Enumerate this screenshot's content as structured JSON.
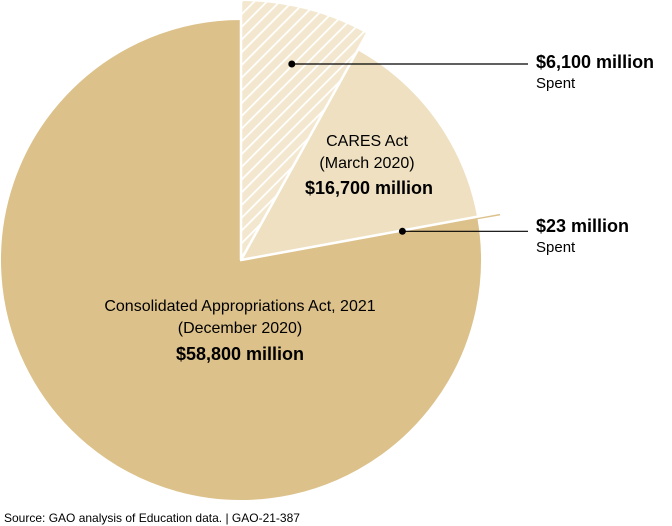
{
  "chart_data": {
    "type": "pie",
    "unit": "$ million",
    "slices": [
      {
        "name": "Consolidated Appropriations Act, 2021",
        "date": "(December 2020)",
        "value": 58800,
        "value_label": "$58,800 million",
        "color": "#dcc18a",
        "spent": {
          "value": 23,
          "label": "$23 million",
          "sublabel": "Spent"
        }
      },
      {
        "name": "CARES Act",
        "date": "(March 2020)",
        "value": 16700,
        "value_label": "$16,700 million",
        "color": "#eee0c0",
        "spent": {
          "value": 6100,
          "label": "$6,100 million",
          "sublabel": "Spent",
          "pattern": "hatched"
        }
      }
    ]
  },
  "source": "Source: GAO analysis of Education data.  |  GAO-21-387"
}
